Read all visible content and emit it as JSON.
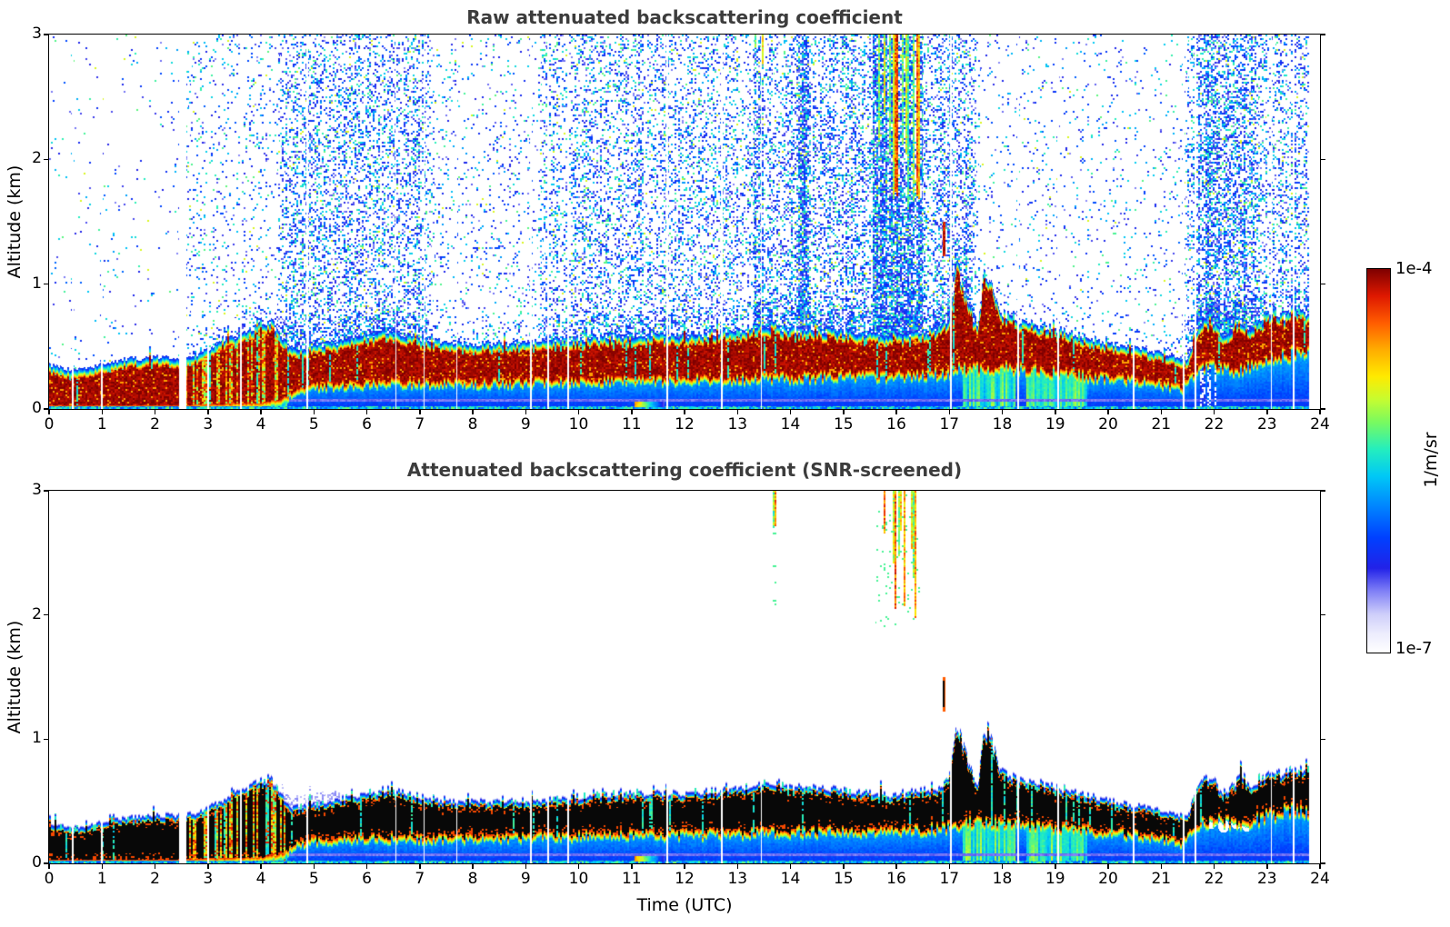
{
  "colorbar": {
    "label": "1/m/sr",
    "max_label": "1e-4",
    "min_label": "1e-7",
    "colormap_stops": [
      [
        0.0,
        "#ffffff"
      ],
      [
        0.05,
        "#ececfd"
      ],
      [
        0.1,
        "#cecefa"
      ],
      [
        0.16,
        "#8080f6"
      ],
      [
        0.22,
        "#2222e8"
      ],
      [
        0.3,
        "#0040ff"
      ],
      [
        0.38,
        "#0084ff"
      ],
      [
        0.46,
        "#00c8f6"
      ],
      [
        0.53,
        "#24eebe"
      ],
      [
        0.6,
        "#78fa60"
      ],
      [
        0.66,
        "#c6fc30"
      ],
      [
        0.72,
        "#ffea00"
      ],
      [
        0.79,
        "#ffac00"
      ],
      [
        0.86,
        "#ff5c00"
      ],
      [
        0.93,
        "#de1800"
      ],
      [
        1.0,
        "#7e0000"
      ]
    ],
    "over_color": "#080808"
  },
  "chart_data": [
    {
      "type": "heatmap",
      "title": "Raw attenuated backscattering coefficient",
      "xlabel": "",
      "ylabel": "Altitude (km)",
      "xlim": [
        0,
        24
      ],
      "ylim": [
        0,
        3
      ],
      "x_ticks": [
        0,
        1,
        2,
        3,
        4,
        5,
        6,
        7,
        8,
        9,
        10,
        11,
        12,
        13,
        14,
        15,
        16,
        17,
        18,
        19,
        20,
        21,
        22,
        23,
        24
      ],
      "y_ticks": [
        0,
        1,
        2,
        3
      ],
      "units": "1/m/sr",
      "value_min": "1e-7",
      "value_max": "1e-4",
      "screened": false,
      "data_end_t": 23.8,
      "gaps_t": [
        0.45,
        1.0,
        3.0,
        3.62,
        4.87,
        6.55,
        7.08,
        7.7,
        9.1,
        9.42,
        9.8,
        11.68,
        12.7,
        13.45,
        17.03,
        18.3,
        19.05,
        20.48,
        21.42,
        21.65,
        23.08,
        23.5
      ],
      "gap_width_t": 0.03,
      "wide_gap": {
        "t": 2.52,
        "width": 0.14
      },
      "boundary_layer_top_km": {
        "x": [
          0,
          0.4,
          0.8,
          1.2,
          1.6,
          2,
          2.5,
          2.8,
          3.1,
          3.4,
          3.7,
          4,
          4.2,
          4.35,
          4.6,
          5,
          5.5,
          6,
          6.4,
          6.9,
          7.5,
          8,
          9,
          10,
          11,
          12,
          13,
          13.5,
          14,
          15,
          15.5,
          16,
          16.5,
          16.8,
          17,
          17.15,
          17.3,
          17.45,
          17.55,
          17.65,
          17.8,
          17.95,
          18.3,
          18.7,
          19,
          19.5,
          20,
          20.5,
          21,
          21.3,
          21.5,
          21.62,
          21.8,
          22,
          22.2,
          22.35,
          22.5,
          22.7,
          22.9,
          23.1,
          23.3,
          23.5,
          23.65,
          23.8
        ],
        "values": [
          0.28,
          0.24,
          0.26,
          0.31,
          0.33,
          0.34,
          0.34,
          0.36,
          0.42,
          0.48,
          0.54,
          0.62,
          0.63,
          0.52,
          0.4,
          0.43,
          0.47,
          0.52,
          0.55,
          0.5,
          0.46,
          0.45,
          0.46,
          0.49,
          0.52,
          0.52,
          0.55,
          0.6,
          0.57,
          0.55,
          0.52,
          0.5,
          0.54,
          0.57,
          0.65,
          1.08,
          0.85,
          0.62,
          0.6,
          1.02,
          0.95,
          0.7,
          0.64,
          0.6,
          0.57,
          0.51,
          0.46,
          0.42,
          0.38,
          0.34,
          0.33,
          0.5,
          0.66,
          0.62,
          0.5,
          0.58,
          0.65,
          0.56,
          0.62,
          0.72,
          0.66,
          0.74,
          0.7,
          0.72
        ]
      },
      "boundary_layer_base_km": {
        "x": [
          0,
          2.5,
          3,
          4,
          4.4,
          4.7,
          5,
          6,
          8,
          10,
          12,
          14,
          15,
          16,
          16.8,
          17.2,
          17.6,
          18,
          19,
          20,
          21,
          21.4,
          21.6,
          22,
          22.5,
          23,
          23.5,
          23.8
        ],
        "values": [
          0.03,
          0.03,
          0.04,
          0.05,
          0.08,
          0.17,
          0.2,
          0.22,
          0.22,
          0.24,
          0.25,
          0.27,
          0.28,
          0.28,
          0.3,
          0.34,
          0.34,
          0.35,
          0.31,
          0.27,
          0.22,
          0.18,
          0.3,
          0.37,
          0.33,
          0.4,
          0.46,
          0.45
        ]
      },
      "speckle_density": {
        "x": [
          0,
          2.4,
          2.7,
          4.3,
          4.5,
          7,
          7.3,
          9.2,
          9.4,
          13.6,
          13.9,
          17.3,
          17.6,
          21.4,
          21.7,
          22.6,
          23,
          23.8
        ],
        "values": [
          0.02,
          0.02,
          0.1,
          0.1,
          0.3,
          0.3,
          0.08,
          0.08,
          0.25,
          0.25,
          0.35,
          0.35,
          0.05,
          0.05,
          0.5,
          0.5,
          0.2,
          0.35
        ]
      },
      "virga": [
        {
          "t": [
            15.55,
            16.5
          ],
          "alt_reach": [
            1.45,
            2.6
          ],
          "density": 0.5
        },
        {
          "t": [
            13.3,
            13.5
          ],
          "alt_reach": [
            2.55,
            2.95
          ],
          "density": 0.25
        },
        {
          "t": [
            14.15,
            14.35
          ],
          "alt_reach": [
            2.6,
            2.95
          ],
          "density": 0.2
        }
      ],
      "cloud_dash": {
        "t": 16.9,
        "alt": [
          1.22,
          1.5
        ]
      },
      "bright_subcloud_periods": [
        [
          3.0,
          4.5
        ],
        [
          17.25,
          18.25
        ],
        [
          18.45,
          19.6
        ]
      ],
      "chaos_period": [
        2.55,
        4.5
      ],
      "broken_below_period": [
        21.65,
        22.15
      ],
      "surface_gradient_patch": {
        "t": [
          11.05,
          11.62
        ],
        "alt": [
          0.018,
          0.06
        ]
      }
    },
    {
      "type": "heatmap",
      "title": "Attenuated backscattering coefficient (SNR-screened)",
      "xlabel": "Time (UTC)",
      "ylabel": "Altitude (km)",
      "xlim": [
        0,
        24
      ],
      "ylim": [
        0,
        3
      ],
      "x_ticks": [
        0,
        1,
        2,
        3,
        4,
        5,
        6,
        7,
        8,
        9,
        10,
        11,
        12,
        13,
        14,
        15,
        16,
        17,
        18,
        19,
        20,
        21,
        22,
        23,
        24
      ],
      "y_ticks": [
        0,
        1,
        2,
        3
      ],
      "units": "1/m/sr",
      "value_min": "1e-7",
      "value_max": "1e-4",
      "screened": true,
      "data_end_t": 23.8,
      "gaps_t": [
        0.45,
        1.0,
        3.0,
        3.62,
        4.87,
        6.55,
        7.08,
        7.7,
        9.1,
        9.42,
        9.8,
        11.68,
        12.7,
        13.45,
        17.03,
        18.3,
        19.05,
        20.48,
        21.42,
        21.65,
        23.08,
        23.5
      ],
      "gap_width_t": 0.03,
      "wide_gap": {
        "t": 2.52,
        "width": 0.14
      },
      "boundary_layer_top_km": {
        "x": [
          0,
          0.4,
          0.8,
          1.2,
          1.6,
          2,
          2.5,
          2.8,
          3.1,
          3.4,
          3.7,
          4,
          4.2,
          4.35,
          4.6,
          5,
          5.5,
          6,
          6.4,
          6.9,
          7.5,
          8,
          9,
          10,
          11,
          12,
          13,
          13.5,
          14,
          15,
          15.5,
          16,
          16.5,
          16.8,
          17,
          17.15,
          17.3,
          17.45,
          17.55,
          17.65,
          17.8,
          17.95,
          18.3,
          18.7,
          19,
          19.5,
          20,
          20.5,
          21,
          21.3,
          21.5,
          21.62,
          21.8,
          22,
          22.2,
          22.35,
          22.5,
          22.7,
          22.9,
          23.1,
          23.3,
          23.5,
          23.65,
          23.8
        ],
        "values": [
          0.28,
          0.24,
          0.26,
          0.31,
          0.33,
          0.34,
          0.34,
          0.36,
          0.42,
          0.48,
          0.54,
          0.62,
          0.63,
          0.52,
          0.4,
          0.43,
          0.47,
          0.52,
          0.55,
          0.5,
          0.46,
          0.45,
          0.46,
          0.49,
          0.52,
          0.52,
          0.55,
          0.6,
          0.57,
          0.55,
          0.52,
          0.5,
          0.54,
          0.57,
          0.65,
          1.08,
          0.85,
          0.62,
          0.6,
          1.02,
          0.95,
          0.7,
          0.64,
          0.6,
          0.57,
          0.51,
          0.46,
          0.42,
          0.38,
          0.34,
          0.33,
          0.5,
          0.66,
          0.62,
          0.5,
          0.58,
          0.65,
          0.56,
          0.62,
          0.72,
          0.66,
          0.74,
          0.7,
          0.72
        ]
      },
      "boundary_layer_base_km": {
        "x": [
          0,
          2.5,
          3,
          4,
          4.4,
          4.7,
          5,
          6,
          8,
          10,
          12,
          14,
          15,
          16,
          16.8,
          17.2,
          17.6,
          18,
          19,
          20,
          21,
          21.4,
          21.6,
          22,
          22.5,
          23,
          23.5,
          23.8
        ],
        "values": [
          0.03,
          0.03,
          0.04,
          0.05,
          0.08,
          0.17,
          0.2,
          0.22,
          0.22,
          0.24,
          0.25,
          0.27,
          0.28,
          0.28,
          0.3,
          0.34,
          0.34,
          0.35,
          0.31,
          0.27,
          0.22,
          0.18,
          0.3,
          0.37,
          0.33,
          0.4,
          0.46,
          0.45
        ]
      },
      "virga": [
        {
          "t": [
            15.6,
            16.45
          ],
          "alt_reach": [
            1.95,
            2.7
          ],
          "density": 0.55
        },
        {
          "t": [
            13.66,
            13.74
          ],
          "alt_reach": [
            2.62,
            2.72
          ],
          "density": 0.9
        }
      ],
      "cloud_dash": {
        "t": 16.9,
        "alt": [
          1.22,
          1.5
        ]
      },
      "bright_subcloud_periods": [
        [
          3.0,
          4.5
        ],
        [
          17.25,
          18.25
        ],
        [
          18.45,
          19.6
        ]
      ],
      "chaos_period": [
        2.55,
        4.5
      ],
      "surface_gradient_patch": {
        "t": [
          11.05,
          11.62
        ],
        "alt": [
          0.018,
          0.06
        ]
      },
      "white_holes": [
        [
          21.95,
          0.33
        ],
        [
          22.05,
          0.45
        ],
        [
          22.18,
          0.3
        ],
        [
          22.3,
          0.4
        ],
        [
          22.42,
          0.33
        ],
        [
          22.52,
          0.44
        ],
        [
          22.62,
          0.31
        ],
        [
          22.7,
          0.42
        ]
      ]
    }
  ]
}
